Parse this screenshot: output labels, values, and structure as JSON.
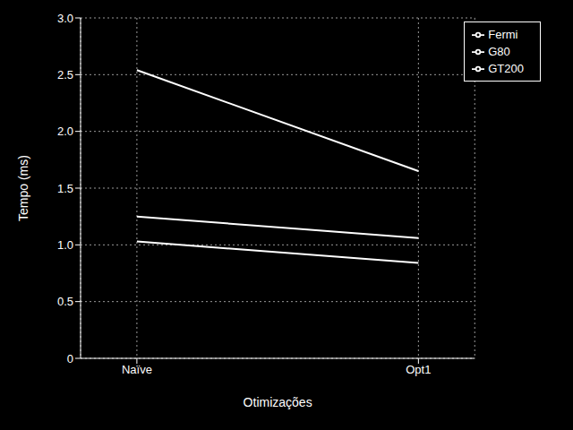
{
  "chart_data": {
    "type": "line",
    "x": [
      0,
      1
    ],
    "xlim": [
      -0.2,
      1.2
    ],
    "xticks": [
      {
        "value": 0,
        "label": "Naïve"
      },
      {
        "value": 1,
        "label": "Opt1"
      }
    ],
    "ylim": [
      0,
      3.0
    ],
    "yticks": [
      0,
      0.5,
      {
        "value": 1,
        "label": "1.0"
      },
      1.5,
      {
        "value": 2,
        "label": "2.0"
      },
      2.5,
      {
        "value": 3,
        "label": "3.0"
      }
    ],
    "x_label": "Otimizações",
    "y_label": "Tempo (ms)",
    "grid": true,
    "legend": "upper right",
    "series": [
      {
        "name": "G80",
        "color": "#ffffff",
        "values": [
          2.54,
          1.65
        ]
      },
      {
        "name": "GT200",
        "color": "#ffffff",
        "values": [
          1.25,
          1.06
        ]
      },
      {
        "name": "Fermi",
        "color": "#ffffff",
        "values": [
          1.03,
          0.84
        ]
      }
    ]
  }
}
